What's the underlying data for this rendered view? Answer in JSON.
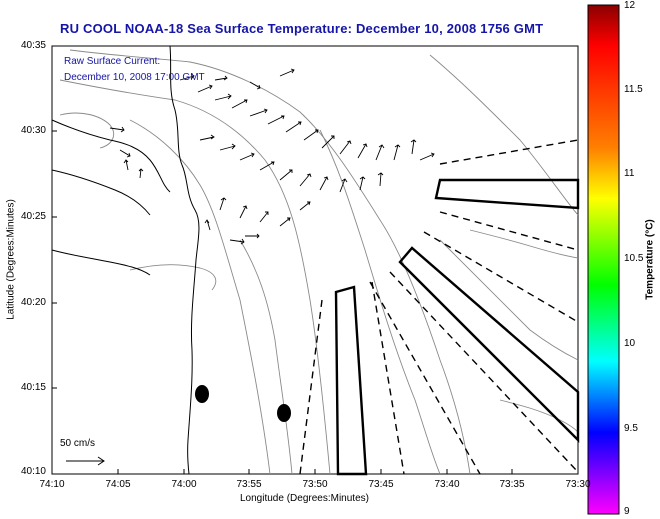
{
  "header": {
    "title": "RU COOL  NOAA-18  Sea Surface Temperature:  December 10, 2008 1756 GMT"
  },
  "overlay": {
    "raw_current_label": "Raw Surface Current:",
    "raw_current_time": "December 10, 2008 17:00 GMT"
  },
  "axes": {
    "x_title": "Longitude (Degrees:Minutes)",
    "y_title": "Latitude (Degrees:Minutes)",
    "x_ticks": [
      "74:10",
      "74:05",
      "74:00",
      "73:55",
      "73:50",
      "73:45",
      "73:40",
      "73:35",
      "73:30"
    ],
    "y_ticks": [
      "40:35",
      "40:30",
      "40:25",
      "40:20",
      "40:15",
      "40:10"
    ]
  },
  "colorbar": {
    "title": "Temperature (°C)",
    "ticks": [
      "12",
      "11.5",
      "11",
      "10.5",
      "10",
      "9.5",
      "9"
    ],
    "colors": [
      "#8b0000",
      "#ff0000",
      "#ff7f00",
      "#ffff00",
      "#00ff00",
      "#00ffff",
      "#0000ff",
      "#ff00ff"
    ]
  },
  "scale": {
    "label": "50 cm/s"
  },
  "map_colors": {
    "coast": "#000000",
    "bathymetry": "#8a8a8a",
    "vector": "#000000",
    "outline": "#000000"
  }
}
